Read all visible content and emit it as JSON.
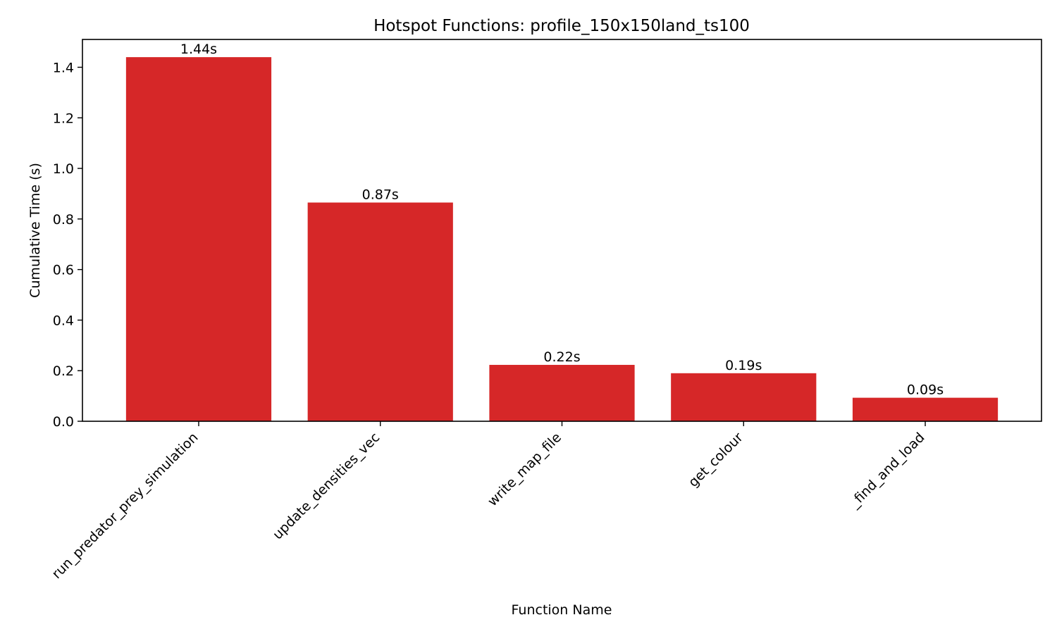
{
  "chart_data": {
    "type": "bar",
    "title": "Hotspot Functions: profile_150x150land_ts100",
    "xlabel": "Function Name",
    "ylabel": "Cumulative Time (s)",
    "categories": [
      "run_predator_prey_simulation",
      "update_densities_vec",
      "write_map_file",
      "get_colour",
      "_find_and_load"
    ],
    "values": [
      1.44,
      0.865,
      0.223,
      0.19,
      0.093
    ],
    "data_labels": [
      "1.44s",
      "0.87s",
      "0.22s",
      "0.19s",
      "0.09s"
    ],
    "ylim": [
      0,
      1.51
    ],
    "yticks": [
      0.0,
      0.2,
      0.4,
      0.6,
      0.8,
      1.0,
      1.2,
      1.4
    ],
    "ytick_labels": [
      "0.0",
      "0.2",
      "0.4",
      "0.6",
      "0.8",
      "1.0",
      "1.2",
      "1.4"
    ],
    "bar_color": "#d62728",
    "grid": false,
    "legend": "none"
  }
}
